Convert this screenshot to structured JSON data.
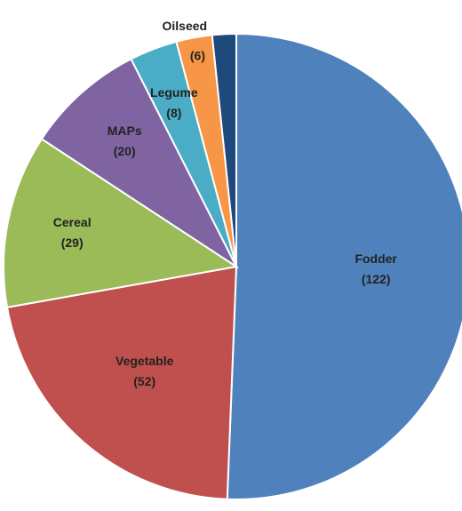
{
  "chart_data": {
    "type": "pie",
    "categories": [
      "Fodder",
      "Vegetable",
      "Cereal",
      "MAPs",
      "Legume",
      "Oilseed",
      null
    ],
    "values": [
      122,
      52,
      29,
      20,
      8,
      6,
      4
    ],
    "value_labels": [
      "(122)",
      "(52)",
      "(29)",
      "(20)",
      "(8)",
      "(6)",
      null
    ],
    "colors": [
      "#4f81bd",
      "#c0504d",
      "#9bbb59",
      "#8064a2",
      "#4bacc6",
      "#f79646",
      "#1f497d"
    ],
    "start_angle": 0,
    "direction": "clockwise"
  }
}
